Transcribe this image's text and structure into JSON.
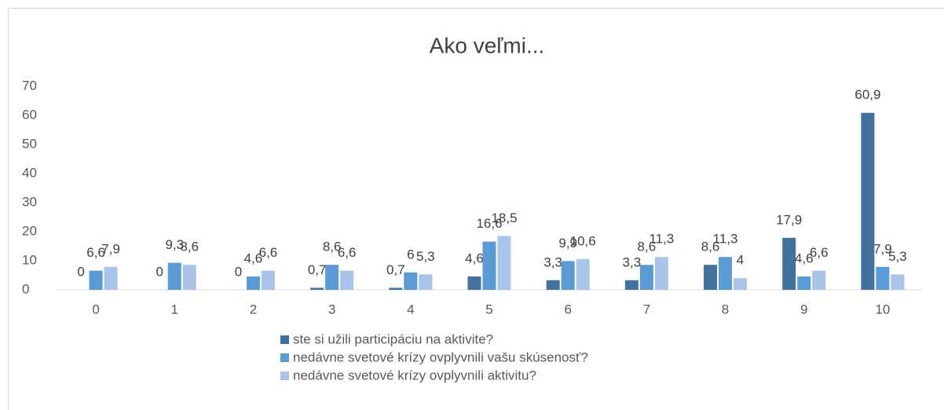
{
  "chart_data": {
    "type": "bar",
    "title": "Ako veľmi...",
    "categories": [
      "0",
      "1",
      "2",
      "3",
      "4",
      "5",
      "6",
      "7",
      "8",
      "9",
      "10"
    ],
    "series": [
      {
        "name": "ste si užili participáciu na aktivite?",
        "color": "#41719c",
        "values": [
          0,
          0,
          0,
          0.7,
          0.7,
          4.6,
          3.3,
          3.3,
          8.6,
          17.9,
          60.9
        ],
        "value_labels": [
          "0",
          "0",
          "0",
          "0,7",
          "0,7",
          "4,6",
          "3,3",
          "3,3",
          "8,6",
          "17,9",
          "60,9"
        ]
      },
      {
        "name": "nedávne svetové krízy ovplyvnili vašu skúsenosť?",
        "color": "#5b9bd5",
        "values": [
          6.6,
          9.3,
          4.6,
          8.6,
          6,
          16.6,
          9.9,
          8.6,
          11.3,
          4.6,
          7.9
        ],
        "value_labels": [
          "6,6",
          "9,3",
          "4,6",
          "8,6",
          "6",
          "16,6",
          "9,9",
          "8,6",
          "11,3",
          "4,6",
          "7,9"
        ]
      },
      {
        "name": "nedávne svetové krízy ovplyvnili aktivitu?",
        "color": "#a9c4e8",
        "values": [
          7.9,
          8.6,
          6.6,
          6.6,
          5.3,
          18.5,
          10.6,
          11.3,
          4,
          6.6,
          5.3
        ],
        "value_labels": [
          "7,9",
          "8,6",
          "6,6",
          "6,6",
          "5,3",
          "18,5",
          "10,6",
          "11,3",
          "4",
          "6,6",
          "5,3"
        ]
      }
    ],
    "ylim": [
      0,
      70
    ],
    "yticks": [
      0,
      10,
      20,
      30,
      40,
      50,
      60,
      70
    ],
    "grid": false,
    "legend": "bottom"
  }
}
